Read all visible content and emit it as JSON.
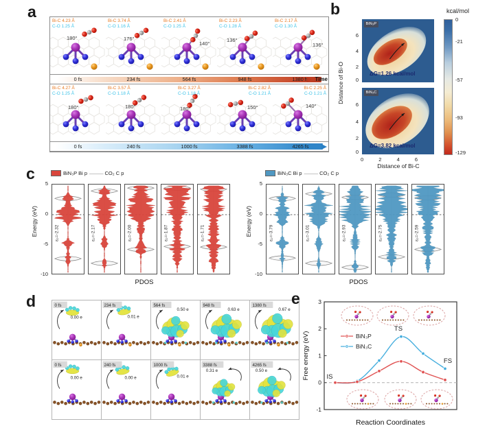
{
  "colors": {
    "bi_atom": "#a03ab0",
    "n_atom": "#2626c8",
    "o_atom": "#cc2015",
    "c_atom": "#9a9a9a",
    "p_dopant": "#e08a1e",
    "bic_label": "#e87a22",
    "co_label": "#3fc3e8",
    "binp_accent": "#e05252",
    "binc_accent": "#45aede"
  },
  "panel_a": {
    "label": "a",
    "time_label": "Time",
    "rows": [
      {
        "system": "BiN₃P",
        "frames": [
          {
            "bi_c": "Bi-C 4.23 Å",
            "c_o": "C-O 1.25 Å",
            "angle": "180°",
            "time": "0 fs"
          },
          {
            "bi_c": "Bi-C 3.74 Å",
            "c_o": "C-O 1.16 Å",
            "angle": "176°",
            "time": "234 fs"
          },
          {
            "bi_c": "Bi-C 2.41 Å",
            "c_o": "C-O 1.25 Å",
            "angle": "140°",
            "time": "564 fs"
          },
          {
            "bi_c": "Bi-C 2.23 Å",
            "c_o": "C-O 1.28 Å",
            "angle": "136°",
            "time": "948 fs"
          },
          {
            "bi_c": "Bi-C 2.17 Å",
            "c_o": "C-O 1.30 Å",
            "angle": "136°",
            "time": "1380 fs"
          }
        ]
      },
      {
        "system": "BiN₃C",
        "frames": [
          {
            "bi_c": "Bi-C 4.27 Å",
            "c_o": "C-O 1.25 Å",
            "angle": "180°",
            "time": "0 fs"
          },
          {
            "bi_c": "Bi-C 3.57 Å",
            "c_o": "C-O 1.18 Å",
            "angle": "180°",
            "time": "240 fs"
          },
          {
            "bi_c": "Bi-C 3.27 Å",
            "c_o": "C-O 1.18 Å",
            "angle": "180°",
            "time": "1000 fs"
          },
          {
            "bi_c": "Bi-C 2.82 Å",
            "c_o": "C-O 1.21 Å",
            "angle": "150°",
            "time": "3388 fs"
          },
          {
            "bi_c": "Bi-C 2.25 Å",
            "c_o": "C-O 1.21 Å",
            "angle": "140°",
            "time": "4265 fs"
          }
        ]
      }
    ]
  },
  "panel_b": {
    "label": "b",
    "ylabel": "Distance of Bi-O",
    "xlabel": "Distance of Bi-C",
    "yticks": [
      "6",
      "4",
      "2",
      "0"
    ],
    "xticks": [
      "0",
      "2",
      "4",
      "6"
    ],
    "colorbar": {
      "title": "kcal/mol",
      "ticks": [
        "0",
        "-21",
        "-57",
        "-93",
        "-129"
      ]
    },
    "maps": [
      {
        "tag": "BiN₃P",
        "dg": "ΔG=1.26 kcal/mol"
      },
      {
        "tag": "BiN₃C",
        "dg": "ΔG=3.82 kcal/mol"
      }
    ]
  },
  "panel_c": {
    "label": "c",
    "ylabel": "Energy (eV)",
    "yticks": [
      "5",
      "0",
      "-5",
      "-10"
    ],
    "xlabel": "PDOS",
    "groups": [
      {
        "legend_fill": "BiN₃P Bi p",
        "legend_line": "CO₂ C p",
        "color": "#d9453c",
        "stroke": "#b02c26",
        "panels": [
          {
            "eps": "εₚ=-2.32",
            "seed": 11,
            "co2_peaks": [
              2.8,
              -7.6
            ],
            "bumps": [
              [
                2.8,
                0.5,
                0.5
              ],
              [
                0.4,
                0.9,
                0.95
              ],
              [
                -0.6,
                0.5,
                0.5
              ],
              [
                -5,
                0.5,
                0.5
              ],
              [
                -7.5,
                0.7,
                0.3
              ]
            ]
          },
          {
            "eps": "εₚ=-2.17",
            "seed": 22,
            "co2_peaks": [
              4.1,
              -8.4
            ],
            "bumps": [
              [
                4,
                0.5,
                0.5
              ],
              [
                2.2,
                0.7,
                0.75
              ],
              [
                0.3,
                1.1,
                1
              ],
              [
                -1,
                0.6,
                0.5
              ],
              [
                -4.8,
                0.6,
                0.4
              ],
              [
                -8.4,
                0.5,
                0.3
              ]
            ]
          },
          {
            "eps": "εₚ=-2.00",
            "seed": 33,
            "co2_peaks": [
              4.6,
              -6.0
            ],
            "bumps": [
              [
                4.6,
                0.4,
                0.7
              ],
              [
                2.6,
                0.9,
                0.85
              ],
              [
                1,
                0.9,
                0.9
              ],
              [
                -0.3,
                0.7,
                0.55
              ],
              [
                -2.5,
                1.5,
                0.3
              ],
              [
                -6,
                0.7,
                0.45
              ]
            ]
          },
          {
            "eps": "εₚ=-1.87",
            "seed": 44,
            "co2_peaks": [
              4.6,
              -5.5
            ],
            "bumps": [
              [
                4.5,
                0.7,
                0.9
              ],
              [
                2.8,
                1.1,
                0.95
              ],
              [
                0.2,
                0.9,
                0.65
              ],
              [
                -2.5,
                1.6,
                0.4
              ],
              [
                -5.5,
                0.7,
                0.6
              ],
              [
                -7.6,
                0.8,
                0.4
              ]
            ]
          },
          {
            "eps": "εₚ=-1.71",
            "seed": 55,
            "co2_peaks": [
              4.4,
              -5.6
            ],
            "bumps": [
              [
                4.3,
                0.7,
                0.85
              ],
              [
                2.3,
                1.2,
                1
              ],
              [
                0.3,
                0.7,
                0.6
              ],
              [
                -2.8,
                1.6,
                0.45
              ],
              [
                -5.6,
                0.8,
                0.6
              ],
              [
                -8,
                0.9,
                0.4
              ]
            ]
          }
        ]
      },
      {
        "legend_fill": "BiN₃C Bi p",
        "legend_line": "CO₂ C p",
        "color": "#5098c2",
        "stroke": "#31708f",
        "panels": [
          {
            "eps": "εₚ=-3.79",
            "seed": 66,
            "co2_peaks": [
              2.8,
              -7.5
            ],
            "bumps": [
              [
                2.9,
                0.5,
                0.45
              ],
              [
                0.4,
                0.8,
                0.9
              ],
              [
                -1,
                0.5,
                0.4
              ],
              [
                -4.9,
                0.6,
                0.5
              ],
              [
                -7.5,
                0.6,
                0.3
              ]
            ]
          },
          {
            "eps": "εₚ=-3.01",
            "seed": 77,
            "co2_peaks": [
              3.6,
              -8.4
            ],
            "bumps": [
              [
                3.5,
                0.6,
                0.55
              ],
              [
                1.5,
                0.8,
                0.7
              ],
              [
                0.2,
                1,
                0.95
              ],
              [
                -1.2,
                0.6,
                0.45
              ],
              [
                -5,
                0.7,
                0.4
              ],
              [
                -8.4,
                0.5,
                0.3
              ]
            ]
          },
          {
            "eps": "εₚ=-2.93",
            "seed": 88,
            "co2_peaks": [
              3.0,
              -9.1
            ],
            "bumps": [
              [
                4,
                0.6,
                0.8
              ],
              [
                2,
                1,
                0.85
              ],
              [
                0.3,
                0.9,
                0.95
              ],
              [
                -1,
                0.7,
                0.7
              ],
              [
                -4.8,
                1,
                0.4
              ],
              [
                -9,
                0.6,
                0.3
              ]
            ]
          },
          {
            "eps": "εₚ=-2.75",
            "seed": 99,
            "co2_peaks": [
              3.4,
              -7.3
            ],
            "bumps": [
              [
                4.2,
                0.8,
                0.95
              ],
              [
                2.5,
                1.2,
                1
              ],
              [
                0.8,
                0.9,
                0.85
              ],
              [
                -0.5,
                0.8,
                0.6
              ],
              [
                -3.5,
                1.5,
                0.4
              ],
              [
                -7.2,
                0.8,
                0.5
              ]
            ]
          },
          {
            "eps": "εₚ=-2.59",
            "seed": 111,
            "co2_peaks": [
              2.9,
              -6.0
            ],
            "bumps": [
              [
                4.3,
                0.8,
                1
              ],
              [
                2.6,
                1.2,
                0.95
              ],
              [
                0.5,
                0.8,
                0.7
              ],
              [
                -2,
                1.5,
                0.5
              ],
              [
                -6,
                0.8,
                0.6
              ],
              [
                -8.5,
                0.8,
                0.35
              ]
            ]
          }
        ]
      }
    ]
  },
  "panel_d": {
    "label": "d",
    "rows": [
      {
        "cells": [
          {
            "time": "0 fs",
            "charge": "0.00 e",
            "q": 0.0
          },
          {
            "time": "234 fs",
            "charge": "0.01 e",
            "q": 0.01
          },
          {
            "time": "564 fs",
            "charge": "0.50 e",
            "q": 0.5
          },
          {
            "time": "948 fs",
            "charge": "0.63 e",
            "q": 0.63
          },
          {
            "time": "1380 fs",
            "charge": "0.67 e",
            "q": 0.67
          }
        ]
      },
      {
        "cells": [
          {
            "time": "0 fs",
            "charge": "0.00 e",
            "q": 0.0
          },
          {
            "time": "240 fs",
            "charge": "0.00 e",
            "q": 0.0
          },
          {
            "time": "1000 fs",
            "charge": "0.01 e",
            "q": 0.01
          },
          {
            "time": "3388 fs",
            "charge": "0.31 e",
            "q": 0.31
          },
          {
            "time": "4265 fs",
            "charge": "0.50 e",
            "q": 0.5
          }
        ]
      }
    ]
  },
  "panel_e": {
    "label": "e",
    "ylabel": "Free energy (eV)",
    "xlabel": "Reaction Coordinates",
    "yticks": [
      "3",
      "2",
      "1",
      "0",
      "-1"
    ],
    "annotations": {
      "is": "IS",
      "ts": "TS",
      "fs": "FS"
    },
    "series": [
      {
        "name": "BiN₃P",
        "color": "#e05252",
        "values": [
          0.0,
          0.03,
          0.43,
          0.79,
          0.39,
          0.1
        ]
      },
      {
        "name": "BiN₃C",
        "color": "#45aede",
        "values": [
          0.0,
          0.06,
          0.82,
          1.71,
          1.08,
          0.52
        ]
      }
    ]
  },
  "chart_data": [
    {
      "type": "heatmap",
      "panel": "b",
      "title": "BiN₃P free-energy surface",
      "xlabel": "Distance of Bi-C",
      "ylabel": "Distance of Bi-O",
      "xticks": [
        0,
        2,
        4,
        6
      ],
      "yticks": [
        0,
        2,
        4,
        6
      ],
      "colorbar_label": "kcal/mol",
      "colorbar_ticks": [
        0,
        -21,
        -57,
        -93,
        -129
      ],
      "annotation": "ΔG=1.26 kcal/mol"
    },
    {
      "type": "heatmap",
      "panel": "b",
      "title": "BiN₃C free-energy surface",
      "xlabel": "Distance of Bi-C",
      "ylabel": "Distance of Bi-O",
      "xticks": [
        0,
        2,
        4,
        6
      ],
      "yticks": [
        0,
        2,
        4,
        6
      ],
      "colorbar_label": "kcal/mol",
      "colorbar_ticks": [
        0,
        -21,
        -57,
        -93,
        -129
      ],
      "annotation": "ΔG=3.82 kcal/mol"
    },
    {
      "type": "area",
      "panel": "c",
      "title": "PDOS BiN₃P Bi p vs CO₂ C p",
      "ylabel": "Energy (eV)",
      "ylim": [
        -10,
        5
      ],
      "xlabel": "PDOS",
      "p_band_centers": [
        -2.32,
        -2.17,
        -2.0,
        -1.87,
        -1.71
      ]
    },
    {
      "type": "area",
      "panel": "c",
      "title": "PDOS BiN₃C Bi p vs CO₂ C p",
      "ylabel": "Energy (eV)",
      "ylim": [
        -10,
        5
      ],
      "xlabel": "PDOS",
      "p_band_centers": [
        -3.79,
        -3.01,
        -2.93,
        -2.75,
        -2.59
      ]
    },
    {
      "type": "line",
      "panel": "e",
      "title": "Free energy profile",
      "xlabel": "Reaction Coordinates",
      "ylabel": "Free energy (eV)",
      "ylim": [
        -1,
        3
      ],
      "x_annotations": [
        "IS",
        "TS",
        "FS"
      ],
      "series": [
        {
          "name": "BiN₃P",
          "values": [
            0.0,
            0.03,
            0.43,
            0.79,
            0.39,
            0.1
          ]
        },
        {
          "name": "BiN₃C",
          "values": [
            0.0,
            0.06,
            0.82,
            1.71,
            1.08,
            0.52
          ]
        }
      ]
    }
  ]
}
